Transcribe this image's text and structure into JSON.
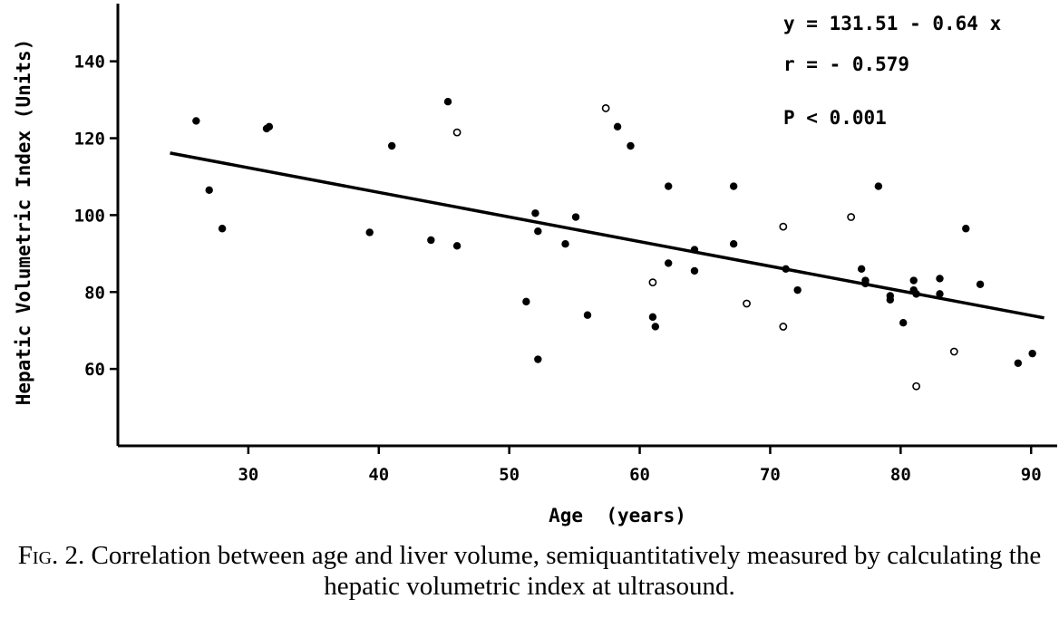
{
  "chart_data": {
    "type": "scatter",
    "xlabel": "Age  (years)",
    "ylabel": "Hepatic Volumetric Index (Units)",
    "xlim": [
      20,
      92
    ],
    "ylim": [
      40,
      155
    ],
    "x_ticks": [
      30,
      40,
      50,
      60,
      70,
      80,
      90
    ],
    "y_ticks": [
      60,
      80,
      100,
      120,
      140
    ],
    "annotations": [
      "y = 131.51 - 0.64 x",
      "r = - 0.579",
      "P < 0.001"
    ],
    "fit": {
      "intercept": 131.51,
      "slope": -0.64,
      "x_range": [
        24,
        91
      ]
    },
    "points": [
      {
        "x": 26,
        "y": 124.5,
        "open": false
      },
      {
        "x": 27,
        "y": 106.5,
        "open": false
      },
      {
        "x": 28,
        "y": 96.5,
        "open": false
      },
      {
        "x": 31.4,
        "y": 122.5,
        "open": false
      },
      {
        "x": 31.6,
        "y": 123,
        "open": false
      },
      {
        "x": 39.3,
        "y": 95.5,
        "open": false
      },
      {
        "x": 41,
        "y": 118,
        "open": false
      },
      {
        "x": 44,
        "y": 93.5,
        "open": false
      },
      {
        "x": 45.3,
        "y": 129.5,
        "open": false
      },
      {
        "x": 46,
        "y": 121.5,
        "open": true
      },
      {
        "x": 46,
        "y": 92,
        "open": false
      },
      {
        "x": 51.3,
        "y": 77.5,
        "open": false
      },
      {
        "x": 52,
        "y": 100.5,
        "open": false
      },
      {
        "x": 52.2,
        "y": 95.8,
        "open": false
      },
      {
        "x": 52.2,
        "y": 62.5,
        "open": false
      },
      {
        "x": 54.3,
        "y": 92.5,
        "open": false
      },
      {
        "x": 55.1,
        "y": 99.5,
        "open": false
      },
      {
        "x": 56,
        "y": 74,
        "open": false
      },
      {
        "x": 57.4,
        "y": 127.8,
        "open": true
      },
      {
        "x": 58.3,
        "y": 123,
        "open": false
      },
      {
        "x": 59.3,
        "y": 118,
        "open": false
      },
      {
        "x": 61,
        "y": 82.5,
        "open": true
      },
      {
        "x": 61,
        "y": 73.5,
        "open": false
      },
      {
        "x": 61.2,
        "y": 71,
        "open": false
      },
      {
        "x": 62.2,
        "y": 107.5,
        "open": false
      },
      {
        "x": 62.2,
        "y": 87.5,
        "open": false
      },
      {
        "x": 64.2,
        "y": 91,
        "open": false
      },
      {
        "x": 64.2,
        "y": 85.5,
        "open": false
      },
      {
        "x": 67.2,
        "y": 107.5,
        "open": false
      },
      {
        "x": 67.2,
        "y": 92.5,
        "open": false
      },
      {
        "x": 68.2,
        "y": 77,
        "open": true
      },
      {
        "x": 71,
        "y": 97,
        "open": true
      },
      {
        "x": 71.2,
        "y": 86,
        "open": false
      },
      {
        "x": 71,
        "y": 71,
        "open": true
      },
      {
        "x": 72.1,
        "y": 80.5,
        "open": false
      },
      {
        "x": 76.2,
        "y": 99.5,
        "open": true
      },
      {
        "x": 77,
        "y": 86,
        "open": false
      },
      {
        "x": 77.3,
        "y": 83,
        "open": false
      },
      {
        "x": 77.3,
        "y": 82.2,
        "open": false
      },
      {
        "x": 78.3,
        "y": 107.5,
        "open": false
      },
      {
        "x": 79.2,
        "y": 79,
        "open": false
      },
      {
        "x": 79.2,
        "y": 78,
        "open": false
      },
      {
        "x": 80.2,
        "y": 72,
        "open": false
      },
      {
        "x": 81,
        "y": 83,
        "open": false
      },
      {
        "x": 81,
        "y": 80.5,
        "open": false
      },
      {
        "x": 81.2,
        "y": 79.5,
        "open": false
      },
      {
        "x": 81.2,
        "y": 55.5,
        "open": true
      },
      {
        "x": 83,
        "y": 83.5,
        "open": false
      },
      {
        "x": 83,
        "y": 79.5,
        "open": false
      },
      {
        "x": 84.1,
        "y": 64.5,
        "open": true
      },
      {
        "x": 85,
        "y": 96.5,
        "open": false
      },
      {
        "x": 86.1,
        "y": 82,
        "open": false
      },
      {
        "x": 89,
        "y": 61.5,
        "open": false
      },
      {
        "x": 90.1,
        "y": 64,
        "open": false
      }
    ]
  },
  "caption": {
    "fig_label": "Fig",
    "fig_rest": ". 2.",
    "text": "Correlation between age and liver volume, semiquantitatively measured by calculating the hepatic volumetric index at ultrasound."
  }
}
